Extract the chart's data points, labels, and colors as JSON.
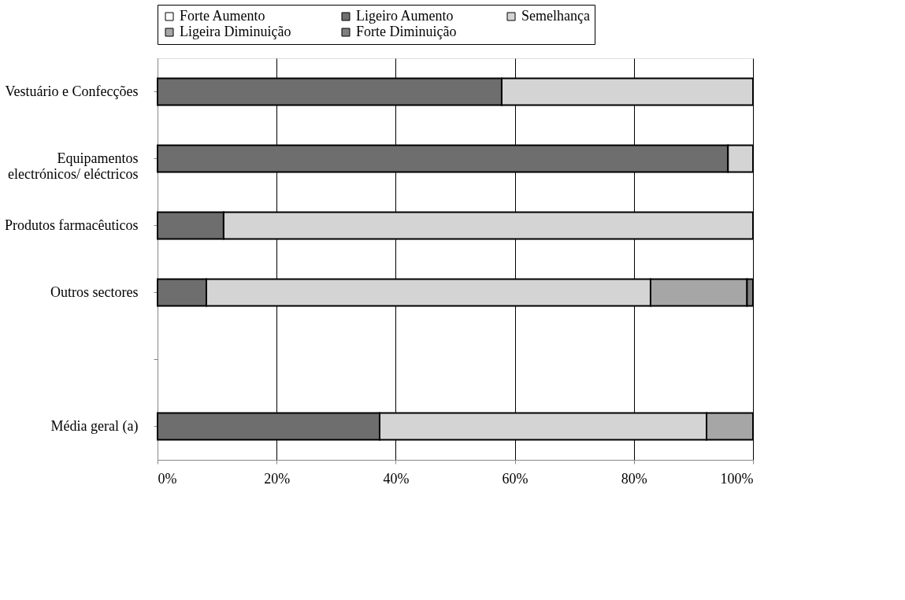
{
  "chart_data": {
    "type": "bar",
    "orientation": "horizontal",
    "stacked": true,
    "categories": [
      "Vestuário e Confecções",
      "Equipamentos\nelectrónicos/ eléctricos",
      "Produtos farmacêuticos",
      "Outros sectores",
      null,
      "Média geral (a)"
    ],
    "series": [
      {
        "name": "Forte Aumento",
        "color": "#ffffff",
        "values": [
          null,
          null,
          null,
          null,
          null,
          null
        ]
      },
      {
        "name": "Ligeiro Aumento",
        "color": "#6e6e6e",
        "values": [
          57.8,
          95.8,
          11.1,
          8.2,
          null,
          37.3
        ]
      },
      {
        "name": "Semelhança",
        "color": "#d4d4d4",
        "values": [
          42.2,
          4.2,
          88.9,
          74.6,
          null,
          54.9
        ]
      },
      {
        "name": "Ligeira Diminuição",
        "color": "#a6a6a6",
        "values": [
          null,
          null,
          null,
          16.2,
          null,
          7.8
        ]
      },
      {
        "name": "Forte Diminuição",
        "color": "#7f7f7f",
        "values": [
          null,
          null,
          null,
          1.0,
          null,
          null
        ]
      }
    ],
    "xlim": [
      0,
      100
    ],
    "xticks": [
      {
        "value": 0,
        "label": "0%"
      },
      {
        "value": 20,
        "label": "20%"
      },
      {
        "value": 40,
        "label": "40%"
      },
      {
        "value": 60,
        "label": "60%"
      },
      {
        "value": 80,
        "label": "80%"
      },
      {
        "value": 100,
        "label": "100%"
      }
    ],
    "grid": "x",
    "legend": "top"
  }
}
